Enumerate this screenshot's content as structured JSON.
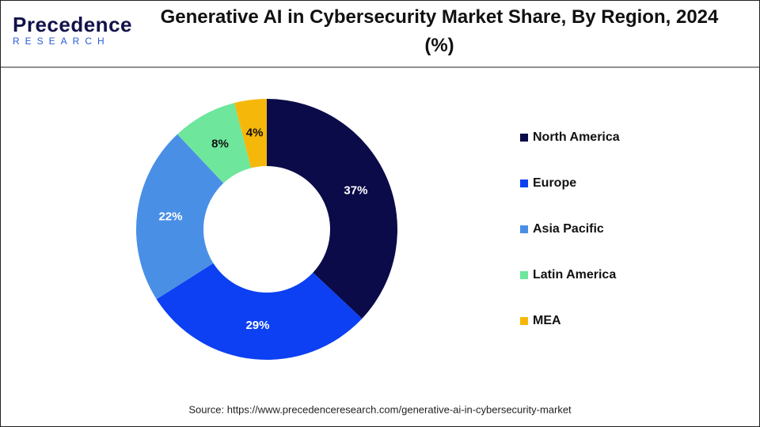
{
  "logo": {
    "name": "Precedence",
    "tagline": "RESEARCH"
  },
  "chart_data": {
    "type": "donut",
    "title": "Generative AI in Cybersecurity Market Share, By Region, 2024 (%)",
    "categories": [
      "North America",
      "Europe",
      "Asia Pacific",
      "Latin America",
      "MEA"
    ],
    "values": [
      37,
      29,
      22,
      8,
      4
    ],
    "value_labels": [
      "37%",
      "29%",
      "22%",
      "8%",
      "4%"
    ],
    "colors": [
      "#0b0b4a",
      "#0c40f2",
      "#4a8fe6",
      "#6ee69c",
      "#f5b80a"
    ],
    "legend": "right",
    "source": "Source: https://www.precedenceresearch.com/generative-ai-in-cybersecurity-market"
  }
}
